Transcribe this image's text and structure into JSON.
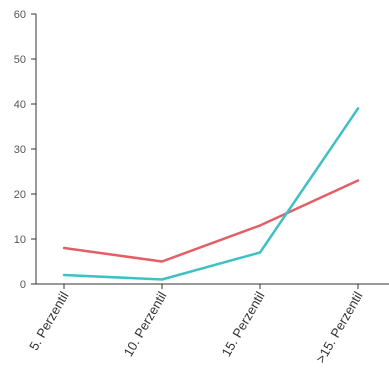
{
  "chart_data": {
    "type": "line",
    "categories": [
      "5. Perzentil",
      "10. Perzentil",
      "15. Perzentil",
      ">15. Perzentil"
    ],
    "series": [
      {
        "color": "#e35f66",
        "values": [
          8,
          5,
          13,
          23
        ]
      },
      {
        "color": "#41c0c4",
        "values": [
          2,
          1,
          7,
          39
        ]
      }
    ],
    "y_ticks": [
      "0",
      "10",
      "20",
      "30",
      "40",
      "50",
      "60"
    ],
    "ylim": [
      0,
      60
    ],
    "grid": false,
    "title": "",
    "xlabel": "",
    "ylabel": ""
  }
}
